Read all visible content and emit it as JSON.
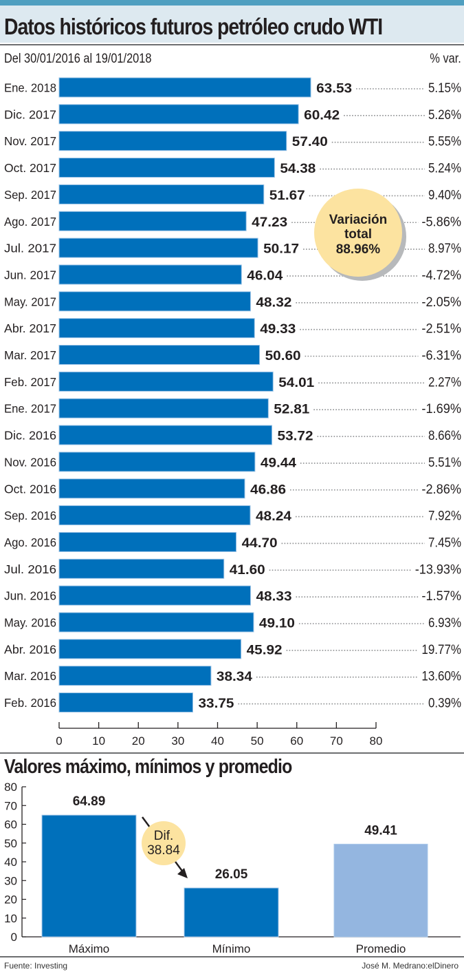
{
  "header": {
    "title": "Datos históricos futuros petróleo crudo WTI",
    "subtitle": "Del 30/01/2016 al 19/01/2018",
    "var_column_header": "% var."
  },
  "colors": {
    "accent_bar": "#4f9fc0",
    "title_bg": "#dde9f0",
    "bar_primary": "#0070bb",
    "bar_average": "#94b6e0",
    "bubble": "#fce3a0"
  },
  "chart_data": [
    {
      "type": "bar",
      "orientation": "horizontal",
      "title": "Datos históricos futuros petróleo crudo WTI",
      "subtitle": "Del 30/01/2016 al 19/01/2018",
      "categories": [
        "Ene. 2018",
        "Dic. 2017",
        "Nov. 2017",
        "Oct. 2017",
        "Sep. 2017",
        "Ago. 2017",
        "Jul. 2017",
        "Jun. 2017",
        "May. 2017",
        "Abr. 2017",
        "Mar. 2017",
        "Feb. 2017",
        "Ene. 2017",
        "Dic. 2016",
        "Nov. 2016",
        "Oct. 2016",
        "Sep. 2016",
        "Ago. 2016",
        "Jul. 2016",
        "Jun. 2016",
        "May. 2016",
        "Abr. 2016",
        "Mar. 2016",
        "Feb. 2016"
      ],
      "values": [
        63.53,
        60.42,
        57.4,
        54.38,
        51.67,
        47.23,
        50.17,
        46.04,
        48.32,
        49.33,
        50.6,
        54.01,
        52.81,
        53.72,
        49.44,
        46.86,
        48.24,
        44.7,
        41.6,
        48.33,
        49.1,
        45.92,
        38.34,
        33.75
      ],
      "value_labels": [
        "63.53",
        "60.42",
        "57.40",
        "54.38",
        "51.67",
        "47.23",
        "50.17",
        "46.04",
        "48.32",
        "49.33",
        "50.60",
        "54.01",
        "52.81",
        "53.72",
        "49.44",
        "46.86",
        "48.24",
        "44.70",
        "41.60",
        "48.33",
        "49.10",
        "45.92",
        "38.34",
        "33.75"
      ],
      "pct_var_labels": [
        "5.15%",
        "5.26%",
        "5.55%",
        "5.24%",
        "9.40%",
        "-5.86%",
        "8.97%",
        "-4.72%",
        "-2.05%",
        "-2.51%",
        "-6.31%",
        "2.27%",
        "-1.69%",
        "8.66%",
        "5.51%",
        "-2.86%",
        "7.92%",
        "7.45%",
        "-13.93%",
        "-1.57%",
        "6.93%",
        "19.77%",
        "13.60%",
        "0.39%"
      ],
      "xlim": [
        0,
        80
      ],
      "xticks": [
        "0",
        "10",
        "20",
        "30",
        "40",
        "50",
        "60",
        "70",
        "80"
      ],
      "xlabel": "",
      "ylabel": "",
      "grid": false,
      "annotation": {
        "line1": "Variación",
        "line2": "total",
        "line3": "88.96%"
      }
    },
    {
      "type": "bar",
      "orientation": "vertical",
      "title": "Valores máximo, mínimos y promedio",
      "categories": [
        "Máximo",
        "Mínimo",
        "Promedio"
      ],
      "values": [
        64.89,
        26.05,
        49.41
      ],
      "value_labels": [
        "64.89",
        "26.05",
        "49.41"
      ],
      "ylim": [
        0,
        80
      ],
      "yticks": [
        "0",
        "10",
        "20",
        "30",
        "40",
        "50",
        "60",
        "70",
        "80"
      ],
      "xlabel": "",
      "ylabel": "",
      "grid": false,
      "annotation": {
        "line1": "Dif.",
        "line2": "38.84"
      }
    }
  ],
  "footer": {
    "source": "Fuente: Investing",
    "credit": "José M. Medrano:elDinero"
  }
}
